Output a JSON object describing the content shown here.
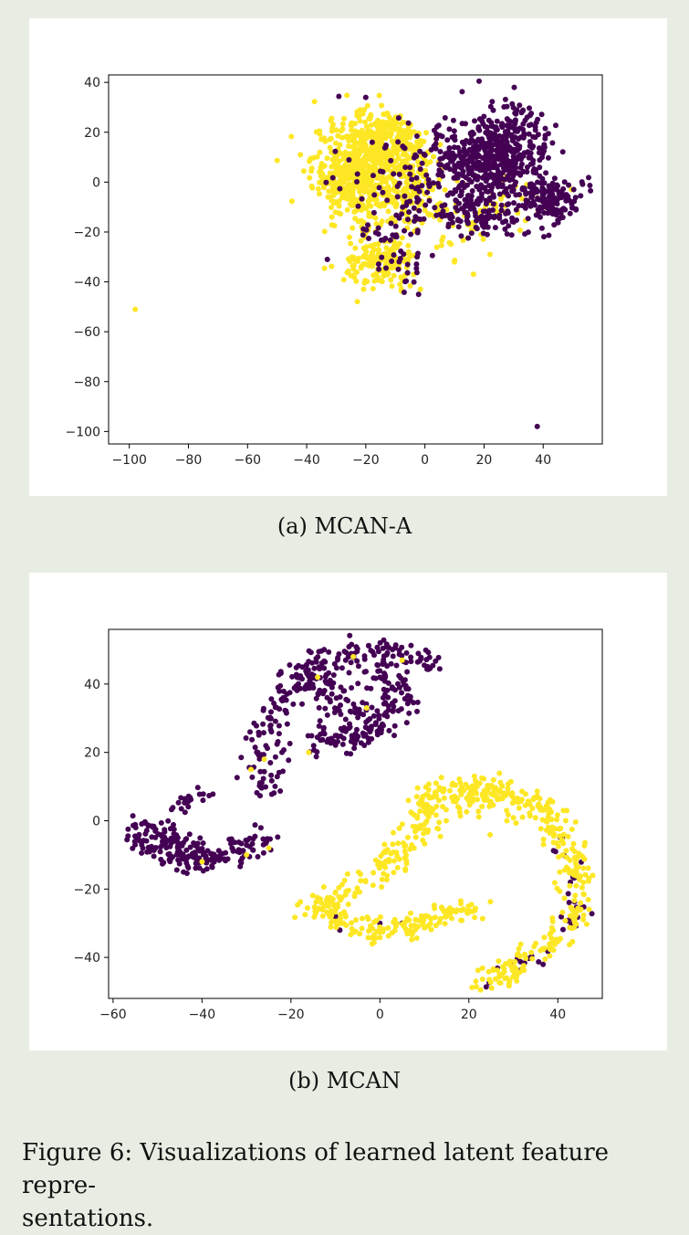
{
  "chart_data": [
    {
      "type": "scatter",
      "id": "a",
      "xlim": [
        -107,
        60
      ],
      "ylim": [
        -105,
        43
      ],
      "xticks": [
        -100,
        -80,
        -60,
        -40,
        -20,
        0,
        20,
        40
      ],
      "yticks": [
        -100,
        -80,
        -60,
        -40,
        -20,
        0,
        20,
        40
      ],
      "xtick_labels": [
        "−100",
        "−80",
        "−60",
        "−40",
        "−20",
        "0",
        "20",
        "40"
      ],
      "ytick_labels": [
        "−100",
        "−80",
        "−60",
        "−40",
        "−20",
        "0",
        "20",
        "40"
      ],
      "grid": false,
      "legend": false,
      "series": [
        {
          "color": "#fde725",
          "clusters": [
            {
              "cx": -22,
              "cy": 5,
              "sx": 8,
              "sy": 10,
              "n": 560
            },
            {
              "cx": -12,
              "cy": 18,
              "sx": 6,
              "sy": 6,
              "n": 160
            },
            {
              "cx": -15,
              "cy": -33,
              "sx": 6,
              "sy": 5,
              "n": 170
            },
            {
              "cx": -5,
              "cy": 0,
              "sx": 6,
              "sy": 10,
              "n": 150
            },
            {
              "cx": 10,
              "cy": -15,
              "sx": 8,
              "sy": 8,
              "n": 40
            },
            {
              "cx": 30,
              "cy": -5,
              "sx": 8,
              "sy": 6,
              "n": 30
            }
          ],
          "points": [
            [
              -98,
              -51
            ],
            [
              22,
              -29
            ],
            [
              10,
              -32
            ]
          ]
        },
        {
          "color": "#440154",
          "clusters": [
            {
              "cx": 27,
              "cy": 11,
              "sx": 8,
              "sy": 9,
              "n": 420
            },
            {
              "cx": 43,
              "cy": -8,
              "sx": 5,
              "sy": 5,
              "n": 130
            },
            {
              "cx": 10,
              "cy": 8,
              "sx": 8,
              "sy": 10,
              "n": 160
            },
            {
              "cx": 18,
              "cy": -12,
              "sx": 7,
              "sy": 6,
              "n": 100
            },
            {
              "cx": -8,
              "cy": -25,
              "sx": 6,
              "sy": 10,
              "n": 60
            },
            {
              "cx": -15,
              "cy": 5,
              "sx": 8,
              "sy": 12,
              "n": 40
            }
          ],
          "points": [
            [
              38,
              -98
            ],
            [
              -20,
              34
            ],
            [
              -33,
              -31
            ]
          ]
        }
      ]
    },
    {
      "type": "scatter",
      "id": "b",
      "xlim": [
        -61,
        50
      ],
      "ylim": [
        -52,
        56
      ],
      "xticks": [
        -60,
        -40,
        -20,
        0,
        20,
        40
      ],
      "yticks": [
        -40,
        -20,
        0,
        20,
        40
      ],
      "xtick_labels": [
        "−60",
        "−40",
        "−20",
        "0",
        "20",
        "40"
      ],
      "ytick_labels": [
        "−40",
        "−20",
        "0",
        "20",
        "40"
      ],
      "grid": false,
      "legend": false,
      "series": [
        {
          "color": "#440154",
          "paths": [
            {
              "pts": [
                [
                  -55,
                  -2
                ],
                [
                  -50,
                  -4
                ],
                [
                  -45,
                  -7
                ],
                [
                  -40,
                  -10
                ],
                [
                  -35,
                  -9
                ],
                [
                  -30,
                  -8
                ],
                [
                  -25,
                  -6
                ]
              ],
              "spread": 2.2,
              "n": 160
            },
            {
              "pts": [
                [
                  -55,
                  -4
                ],
                [
                  -48,
                  -10
                ],
                [
                  -42,
                  -12
                ],
                [
                  -38,
                  -11
                ]
              ],
              "spread": 2.0,
              "n": 60
            },
            {
              "pts": [
                [
                  -45,
                  3
                ],
                [
                  -40,
                  8
                ]
              ],
              "spread": 1.5,
              "n": 20
            },
            {
              "pts": [
                [
                  -25,
                  8
                ],
                [
                  -26,
                  20
                ],
                [
                  -24,
                  30
                ],
                [
                  -20,
                  40
                ],
                [
                  -15,
                  45
                ],
                [
                  -5,
                  50
                ],
                [
                  5,
                  49
                ],
                [
                  12,
                  46
                ]
              ],
              "spread": 2.2,
              "n": 220
            },
            {
              "pts": [
                [
                  -15,
                  42
                ],
                [
                  -10,
                  35
                ],
                [
                  -6,
                  30
                ],
                [
                  0,
                  28
                ],
                [
                  4,
                  33
                ],
                [
                  3,
                  40
                ],
                [
                  -2,
                  45
                ]
              ],
              "spread": 3.0,
              "n": 160
            },
            {
              "pts": [
                [
                  -15,
                  22
                ],
                [
                  -10,
                  25
                ],
                [
                  -5,
                  24
                ],
                [
                  0,
                  30
                ]
              ],
              "spread": 2.0,
              "n": 60
            },
            {
              "pts": [
                [
                  40,
                  -5
                ],
                [
                  43,
                  -15
                ],
                [
                  44,
                  -25
                ],
                [
                  42,
                  -33
                ],
                [
                  37,
                  -40
                ],
                [
                  30,
                  -44
                ],
                [
                  25,
                  -47
                ]
              ],
              "spread": 1.5,
              "n": 40
            }
          ],
          "points": [
            [
              -9,
              -32
            ],
            [
              0,
              -30
            ],
            [
              -10,
              -28
            ],
            [
              5,
              -30
            ],
            [
              25,
              5
            ]
          ]
        },
        {
          "color": "#fde725",
          "paths": [
            {
              "pts": [
                [
                  -15,
                  -25
                ],
                [
                  -10,
                  -28
                ],
                [
                  -5,
                  -31
                ],
                [
                  0,
                  -33
                ],
                [
                  5,
                  -31
                ],
                [
                  10,
                  -29
                ],
                [
                  15,
                  -27
                ],
                [
                  22,
                  -24
                ]
              ],
              "spread": 1.8,
              "n": 160
            },
            {
              "pts": [
                [
                  -15,
                  -27
                ],
                [
                  -8,
                  -20
                ],
                [
                  0,
                  -15
                ],
                [
                  4,
                  -10
                ],
                [
                  8,
                  -3
                ],
                [
                  10,
                  3
                ],
                [
                  13,
                  8
                ],
                [
                  20,
                  10
                ],
                [
                  27,
                  9
                ],
                [
                  33,
                  6
                ],
                [
                  38,
                  3
                ],
                [
                  40,
                  -3
                ],
                [
                  43,
                  -10
                ],
                [
                  44,
                  -18
                ],
                [
                  44,
                  -26
                ],
                [
                  40,
                  -35
                ],
                [
                  33,
                  -40
                ],
                [
                  28,
                  -45
                ],
                [
                  24,
                  -47
                ]
              ],
              "spread": 2.0,
              "n": 460
            },
            {
              "pts": [
                [
                  12,
                  5
                ],
                [
                  20,
                  7
                ],
                [
                  28,
                  5
                ]
              ],
              "spread": 3.0,
              "n": 80
            }
          ],
          "points": [
            [
              -29,
              15
            ],
            [
              -26,
              18
            ],
            [
              -14,
              42
            ],
            [
              -30,
              -10
            ],
            [
              -25,
              -8
            ],
            [
              -40,
              -12
            ],
            [
              -16,
              20
            ],
            [
              -6,
              48
            ],
            [
              5,
              47
            ],
            [
              -3,
              33
            ]
          ]
        }
      ]
    }
  ],
  "captions": {
    "sub_a": "(a)  MCAN-A",
    "sub_b": "(b)  MCAN",
    "figure_line1": "Figure 6:  Visualizations of learned latent feature repre-",
    "figure_line2": "sentations."
  }
}
